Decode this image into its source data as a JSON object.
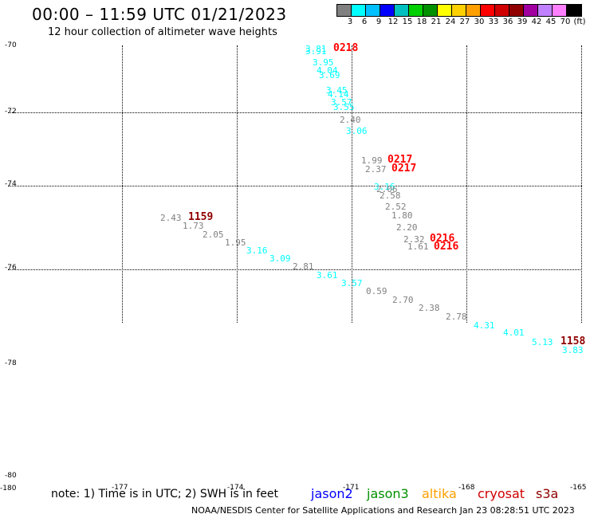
{
  "title": "00:00 – 11:59 UTC 01/21/2023",
  "subtitle": "12 hour collection of altimeter wave heights",
  "legend": {
    "colors": [
      "#808080",
      "#00ffff",
      "#00c0ff",
      "#0000ff",
      "#00c0c0",
      "#00d000",
      "#009000",
      "#ffff00",
      "#ffd000",
      "#ffa000",
      "#ff0000",
      "#d00000",
      "#900000",
      "#a000a0",
      "#c080ff",
      "#ff80ff",
      "#000000"
    ],
    "labels": [
      "3",
      "6",
      "9",
      "12",
      "15",
      "18",
      "21",
      "24",
      "27",
      "30",
      "33",
      "36",
      "39",
      "42",
      "45",
      "70",
      "(ft)"
    ]
  },
  "axes": {
    "y_labels": [
      "-70",
      "-72",
      "-74",
      "-76",
      "-78",
      "-80"
    ],
    "x_labels": [
      "-180",
      "-177",
      "-174",
      "-171",
      "-168",
      "-165"
    ]
  },
  "points": [
    {
      "t": "3.81",
      "c": "#00ffff"
    },
    {
      "t": "3.91",
      "c": "#00ffff"
    },
    {
      "t": "0218",
      "c": "#ff0000",
      "time": true
    },
    {
      "t": "3.95",
      "c": "#00ffff"
    },
    {
      "t": "4.04",
      "c": "#00ffff"
    },
    {
      "t": "3.69",
      "c": "#00ffff"
    },
    {
      "t": "3.45",
      "c": "#00ffff"
    },
    {
      "t": "4.14",
      "c": "#00ffff"
    },
    {
      "t": "3.57",
      "c": "#00ffff"
    },
    {
      "t": "3.55",
      "c": "#00ffff"
    },
    {
      "t": "2.40",
      "c": "#808080"
    },
    {
      "t": "3.06",
      "c": "#00ffff"
    },
    {
      "t": "1.99",
      "c": "#808080"
    },
    {
      "t": "0217",
      "c": "#ff0000",
      "time": true
    },
    {
      "t": "2.37",
      "c": "#808080"
    },
    {
      "t": "0217",
      "c": "#ff0000",
      "time": true
    },
    {
      "t": "3.16",
      "c": "#00ffff"
    },
    {
      "t": "2.06",
      "c": "#808080"
    },
    {
      "t": "2.58",
      "c": "#808080"
    },
    {
      "t": "2.52",
      "c": "#808080"
    },
    {
      "t": "1.80",
      "c": "#808080"
    },
    {
      "t": "2.20",
      "c": "#808080"
    },
    {
      "t": "2.32",
      "c": "#808080"
    },
    {
      "t": "0216",
      "c": "#ff0000",
      "time": true
    },
    {
      "t": "1.61",
      "c": "#808080"
    },
    {
      "t": "0216",
      "c": "#ff0000",
      "time": true
    },
    {
      "t": "2.43",
      "c": "#808080"
    },
    {
      "t": "1159",
      "c": "#900000",
      "time": true
    },
    {
      "t": "1.73",
      "c": "#808080"
    },
    {
      "t": "2.05",
      "c": "#808080"
    },
    {
      "t": "1.95",
      "c": "#808080"
    },
    {
      "t": "3.16",
      "c": "#00ffff"
    },
    {
      "t": "3.09",
      "c": "#00ffff"
    },
    {
      "t": "2.81",
      "c": "#808080"
    },
    {
      "t": "3.61",
      "c": "#00ffff"
    },
    {
      "t": "3.57",
      "c": "#00ffff"
    },
    {
      "t": "0.59",
      "c": "#808080"
    },
    {
      "t": "2.70",
      "c": "#808080"
    },
    {
      "t": "2.38",
      "c": "#808080"
    },
    {
      "t": "2.78",
      "c": "#808080"
    },
    {
      "t": "4.31",
      "c": "#00ffff"
    },
    {
      "t": "4.01",
      "c": "#00ffff"
    },
    {
      "t": "5.13",
      "c": "#00ffff"
    },
    {
      "t": "1158",
      "c": "#900000",
      "time": true
    },
    {
      "t": "3.83",
      "c": "#00ffff"
    }
  ],
  "note": "note:  1) Time is in UTC; 2) SWH is in feet",
  "satellites": [
    {
      "name": "jason2",
      "color": "#0000ff"
    },
    {
      "name": "jason3",
      "color": "#009000"
    },
    {
      "name": "altika",
      "color": "#ffa000"
    },
    {
      "name": "cryosat",
      "color": "#d00000"
    },
    {
      "name": "s3a",
      "color": "#900000"
    }
  ],
  "footer": "NOAA/NESDIS Center for Satellite Applications and Research     Jan 23 08:28:51 UTC 2023"
}
